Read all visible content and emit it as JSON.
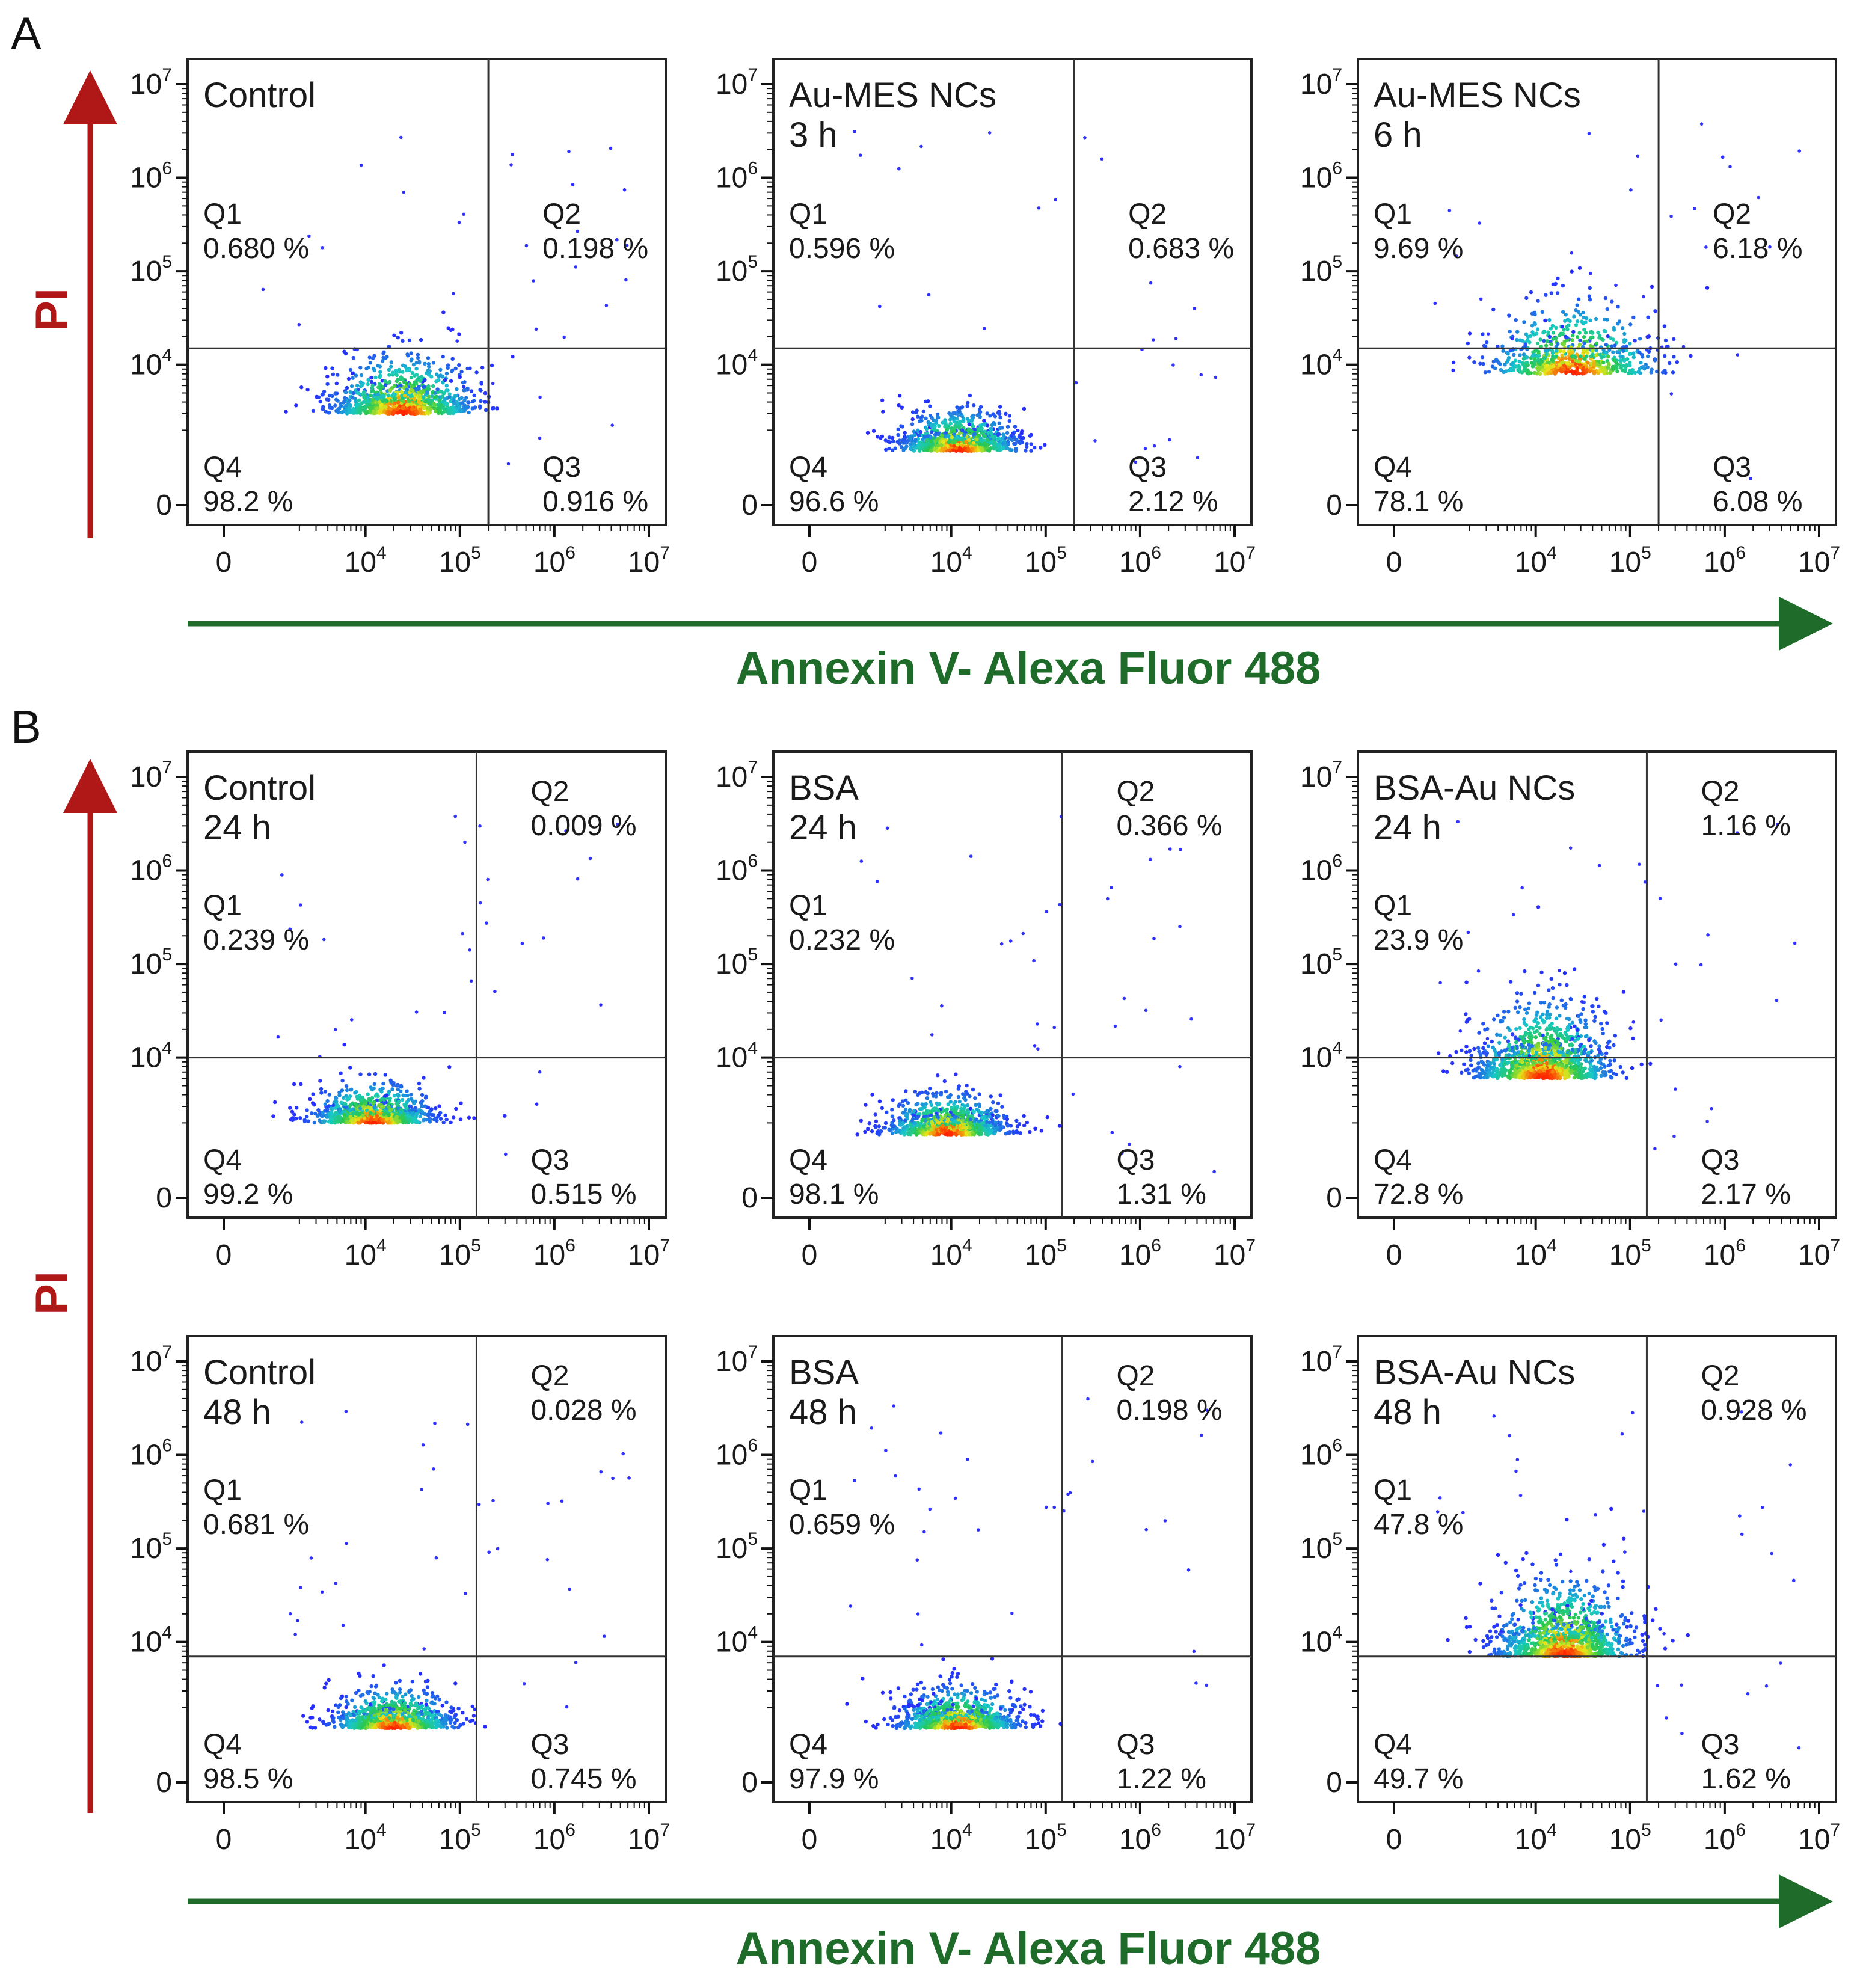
{
  "figure": {
    "sections": [
      {
        "letter": "A",
        "x_axis_title": "Annexin V- Alexa Fluor 488",
        "y_axis_title": "PI"
      },
      {
        "letter": "B",
        "x_axis_title": "Annexin V- Alexa Fluor 488",
        "y_axis_title": "PI"
      }
    ],
    "colors": {
      "x_axis_arrow": "#1e6b2a",
      "y_axis_arrow": "#b01818",
      "frame": "#222222",
      "density_low": "#2a2aff",
      "density_mid": "#18c8c8",
      "density_high": "#e8e818",
      "density_peak": "#ff2000"
    }
  },
  "chart_data": [
    {
      "type": "scatter",
      "plot": "density flow cytometry",
      "section": "A",
      "title_lines": [
        "Control"
      ],
      "x_ticks": [
        "0",
        "10^4",
        "10^5",
        "10^6",
        "10^7"
      ],
      "y_ticks": [
        "0",
        "10^4",
        "10^5",
        "10^6",
        "10^7"
      ],
      "x_gate": 200000,
      "y_gate": 15000,
      "xlim": [
        -2000,
        10000000
      ],
      "ylim": [
        -2000,
        10000000
      ],
      "quadrants": {
        "Q1": "0.680 %",
        "Q2": "0.198 %",
        "Q3": "0.916 %",
        "Q4": "98.2 %"
      },
      "population": {
        "center_x": 25000,
        "center_y": 3000,
        "spread": "medium"
      }
    },
    {
      "type": "scatter",
      "plot": "density flow cytometry",
      "section": "A",
      "title_lines": [
        "Au-MES NCs",
        "3 h"
      ],
      "x_ticks": [
        "0",
        "10^4",
        "10^5",
        "10^6",
        "10^7"
      ],
      "y_ticks": [
        "0",
        "10^4",
        "10^5",
        "10^6",
        "10^7"
      ],
      "x_gate": 200000,
      "y_gate": 15000,
      "xlim": [
        -2000,
        10000000
      ],
      "ylim": [
        -2000,
        10000000
      ],
      "quadrants": {
        "Q1": "0.596 %",
        "Q2": "0.683 %",
        "Q3": "2.12 %",
        "Q4": "96.6 %"
      },
      "population": {
        "center_x": 12000,
        "center_y": 1200,
        "spread": "compact"
      }
    },
    {
      "type": "scatter",
      "plot": "density flow cytometry",
      "section": "A",
      "title_lines": [
        "Au-MES NCs",
        "6 h"
      ],
      "x_ticks": [
        "0",
        "10^4",
        "10^5",
        "10^6",
        "10^7"
      ],
      "y_ticks": [
        "0",
        "10^4",
        "10^5",
        "10^6",
        "10^7"
      ],
      "x_gate": 200000,
      "y_gate": 15000,
      "xlim": [
        -2000,
        10000000
      ],
      "ylim": [
        -2000,
        10000000
      ],
      "quadrants": {
        "Q1": "9.69 %",
        "Q2": "6.18 %",
        "Q3": "6.08 %",
        "Q4": "78.1 %"
      },
      "population": {
        "center_x": 25000,
        "center_y": 8000,
        "spread": "diffuse"
      }
    },
    {
      "type": "scatter",
      "plot": "density flow cytometry",
      "section": "B",
      "title_lines": [
        "Control",
        "24 h"
      ],
      "x_ticks": [
        "0",
        "10^4",
        "10^5",
        "10^6",
        "10^7"
      ],
      "y_ticks": [
        "0",
        "10^4",
        "10^5",
        "10^6",
        "10^7"
      ],
      "x_gate": 150000,
      "y_gate": 10000,
      "xlim": [
        -2000,
        10000000
      ],
      "ylim": [
        -2000,
        10000000
      ],
      "quadrants": {
        "Q1": "0.239 %",
        "Q2": "0.009 %",
        "Q3": "0.515 %",
        "Q4": "99.2 %"
      },
      "population": {
        "center_x": 12000,
        "center_y": 2000,
        "spread": "compact"
      }
    },
    {
      "type": "scatter",
      "plot": "density flow cytometry",
      "section": "B",
      "title_lines": [
        "BSA",
        "24 h"
      ],
      "x_ticks": [
        "0",
        "10^4",
        "10^5",
        "10^6",
        "10^7"
      ],
      "y_ticks": [
        "0",
        "10^4",
        "10^5",
        "10^6",
        "10^7"
      ],
      "x_gate": 150000,
      "y_gate": 10000,
      "xlim": [
        -2000,
        10000000
      ],
      "ylim": [
        -2000,
        10000000
      ],
      "quadrants": {
        "Q1": "0.232 %",
        "Q2": "0.366 %",
        "Q3": "1.31 %",
        "Q4": "98.1 %"
      },
      "population": {
        "center_x": 9000,
        "center_y": 1500,
        "spread": "compact"
      }
    },
    {
      "type": "scatter",
      "plot": "density flow cytometry",
      "section": "B",
      "title_lines": [
        "BSA-Au NCs",
        "24 h"
      ],
      "x_ticks": [
        "0",
        "10^4",
        "10^5",
        "10^6",
        "10^7"
      ],
      "y_ticks": [
        "0",
        "10^4",
        "10^5",
        "10^6",
        "10^7"
      ],
      "x_gate": 150000,
      "y_gate": 10000,
      "xlim": [
        -2000,
        10000000
      ],
      "ylim": [
        -2000,
        10000000
      ],
      "quadrants": {
        "Q1": "23.9 %",
        "Q2": "1.16 %",
        "Q3": "2.17 %",
        "Q4": "72.8 %"
      },
      "population": {
        "center_x": 12000,
        "center_y": 6000,
        "spread": "tall"
      }
    },
    {
      "type": "scatter",
      "plot": "density flow cytometry",
      "section": "B",
      "title_lines": [
        "Control",
        "48 h"
      ],
      "x_ticks": [
        "0",
        "10^4",
        "10^5",
        "10^6",
        "10^7"
      ],
      "y_ticks": [
        "0",
        "10^4",
        "10^5",
        "10^6",
        "10^7"
      ],
      "x_gate": 150000,
      "y_gate": 7000,
      "xlim": [
        -2000,
        10000000
      ],
      "ylim": [
        -2000,
        10000000
      ],
      "quadrants": {
        "Q1": "0.681 %",
        "Q2": "0.028 %",
        "Q3": "0.745 %",
        "Q4": "98.5 %"
      },
      "population": {
        "center_x": 20000,
        "center_y": 1200,
        "spread": "compact"
      }
    },
    {
      "type": "scatter",
      "plot": "density flow cytometry",
      "section": "B",
      "title_lines": [
        "BSA",
        "48 h"
      ],
      "x_ticks": [
        "0",
        "10^4",
        "10^5",
        "10^6",
        "10^7"
      ],
      "y_ticks": [
        "0",
        "10^4",
        "10^5",
        "10^6",
        "10^7"
      ],
      "x_gate": 150000,
      "y_gate": 7000,
      "xlim": [
        -2000,
        10000000
      ],
      "ylim": [
        -2000,
        10000000
      ],
      "quadrants": {
        "Q1": "0.659 %",
        "Q2": "0.198 %",
        "Q3": "1.22 %",
        "Q4": "97.9 %"
      },
      "population": {
        "center_x": 12000,
        "center_y": 1200,
        "spread": "compact"
      }
    },
    {
      "type": "scatter",
      "plot": "density flow cytometry",
      "section": "B",
      "title_lines": [
        "BSA-Au NCs",
        "48 h"
      ],
      "x_ticks": [
        "0",
        "10^4",
        "10^5",
        "10^6",
        "10^7"
      ],
      "y_ticks": [
        "0",
        "10^4",
        "10^5",
        "10^6",
        "10^7"
      ],
      "x_gate": 150000,
      "y_gate": 7000,
      "xlim": [
        -2000,
        10000000
      ],
      "ylim": [
        -2000,
        10000000
      ],
      "quadrants": {
        "Q1": "47.8 %",
        "Q2": "0.928 %",
        "Q3": "1.62 %",
        "Q4": "49.7 %"
      },
      "population": {
        "center_x": 20000,
        "center_y": 7000,
        "spread": "tall"
      }
    }
  ]
}
